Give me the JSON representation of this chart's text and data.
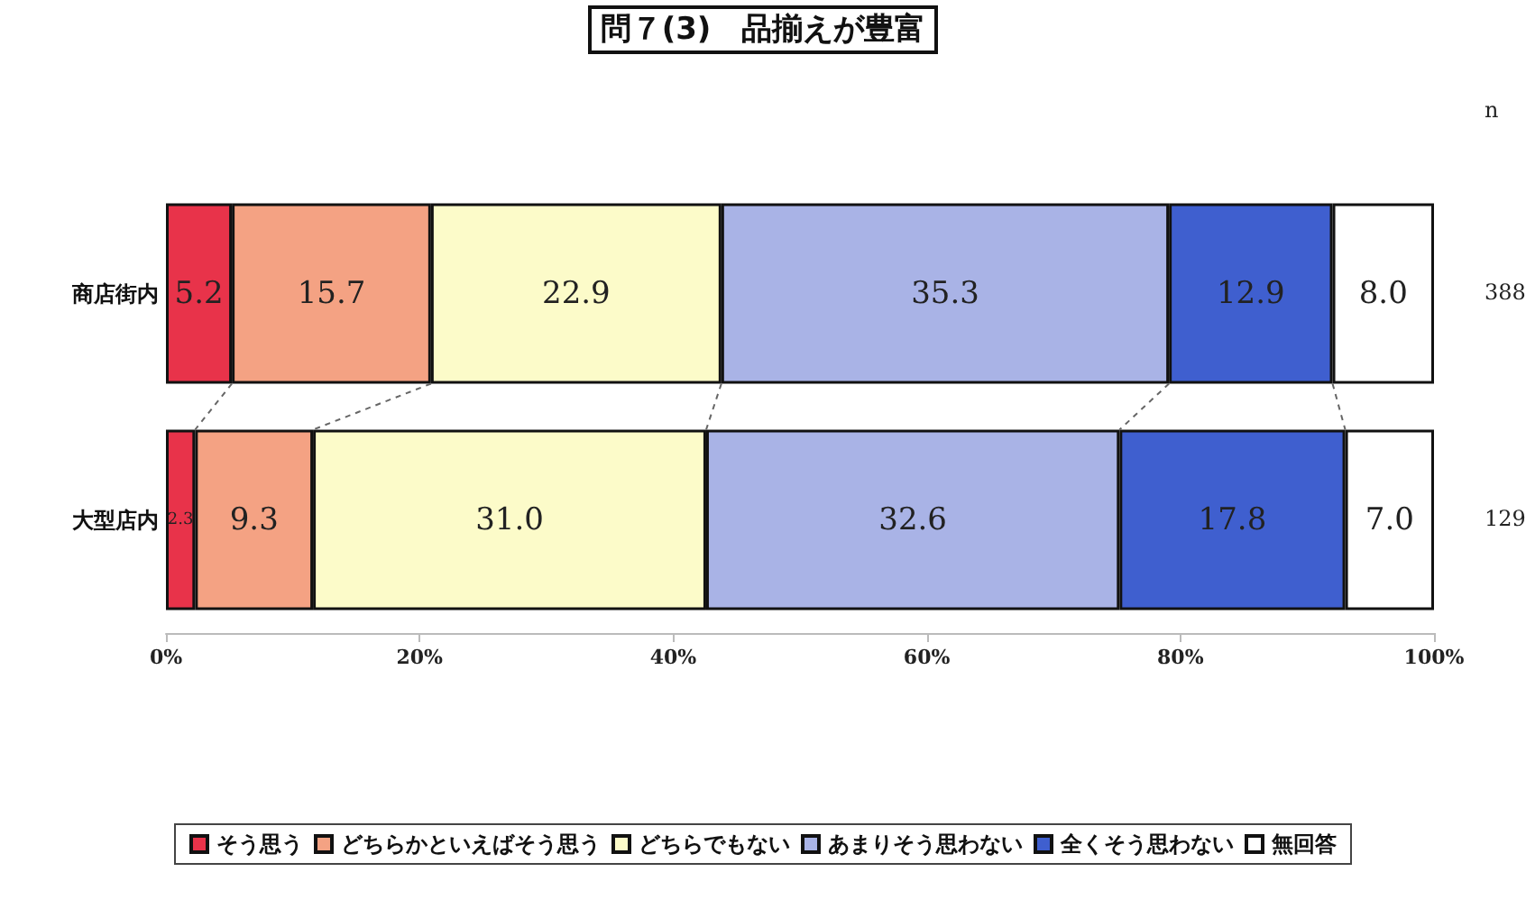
{
  "chart_data": {
    "type": "bar",
    "orientation": "horizontal",
    "stacked": true,
    "title": "問７(3)　品揃えが豊富",
    "categories": [
      "商店街内",
      "大型店内"
    ],
    "series": [
      {
        "name": "そう思う",
        "color": "#e8334a",
        "values": [
          5.2,
          2.3
        ],
        "value_labels": [
          "5.2",
          "2.3"
        ]
      },
      {
        "name": "どちらかといえばそう思う",
        "color": "#f4a283",
        "values": [
          15.7,
          9.3
        ],
        "value_labels": [
          "15.7",
          "9.3"
        ]
      },
      {
        "name": "どちらでもない",
        "color": "#fcfbc9",
        "values": [
          22.9,
          31.0
        ],
        "value_labels": [
          "22.9",
          "31.0"
        ]
      },
      {
        "name": "あまりそう思わない",
        "color": "#a9b3e6",
        "values": [
          35.3,
          32.6
        ],
        "value_labels": [
          "35.3",
          "32.6"
        ]
      },
      {
        "name": "全くそう思わない",
        "color": "#3f5fcf",
        "values": [
          12.9,
          17.8
        ],
        "value_labels": [
          "12.9",
          "17.8"
        ]
      },
      {
        "name": "無回答",
        "color": "#ffffff",
        "values": [
          8.0,
          7.0
        ],
        "value_labels": [
          "8.0",
          "7.0"
        ]
      }
    ],
    "xlim": [
      0,
      100
    ],
    "xticks": [
      {
        "value": 0,
        "label": "0%"
      },
      {
        "value": 20,
        "label": "20%"
      },
      {
        "value": 40,
        "label": "40%"
      },
      {
        "value": 60,
        "label": "60%"
      },
      {
        "value": 80,
        "label": "80%"
      },
      {
        "value": 100,
        "label": "100%"
      }
    ],
    "annotations": [
      "n",
      "388",
      "129"
    ],
    "grid": false,
    "legend": "bottom"
  }
}
